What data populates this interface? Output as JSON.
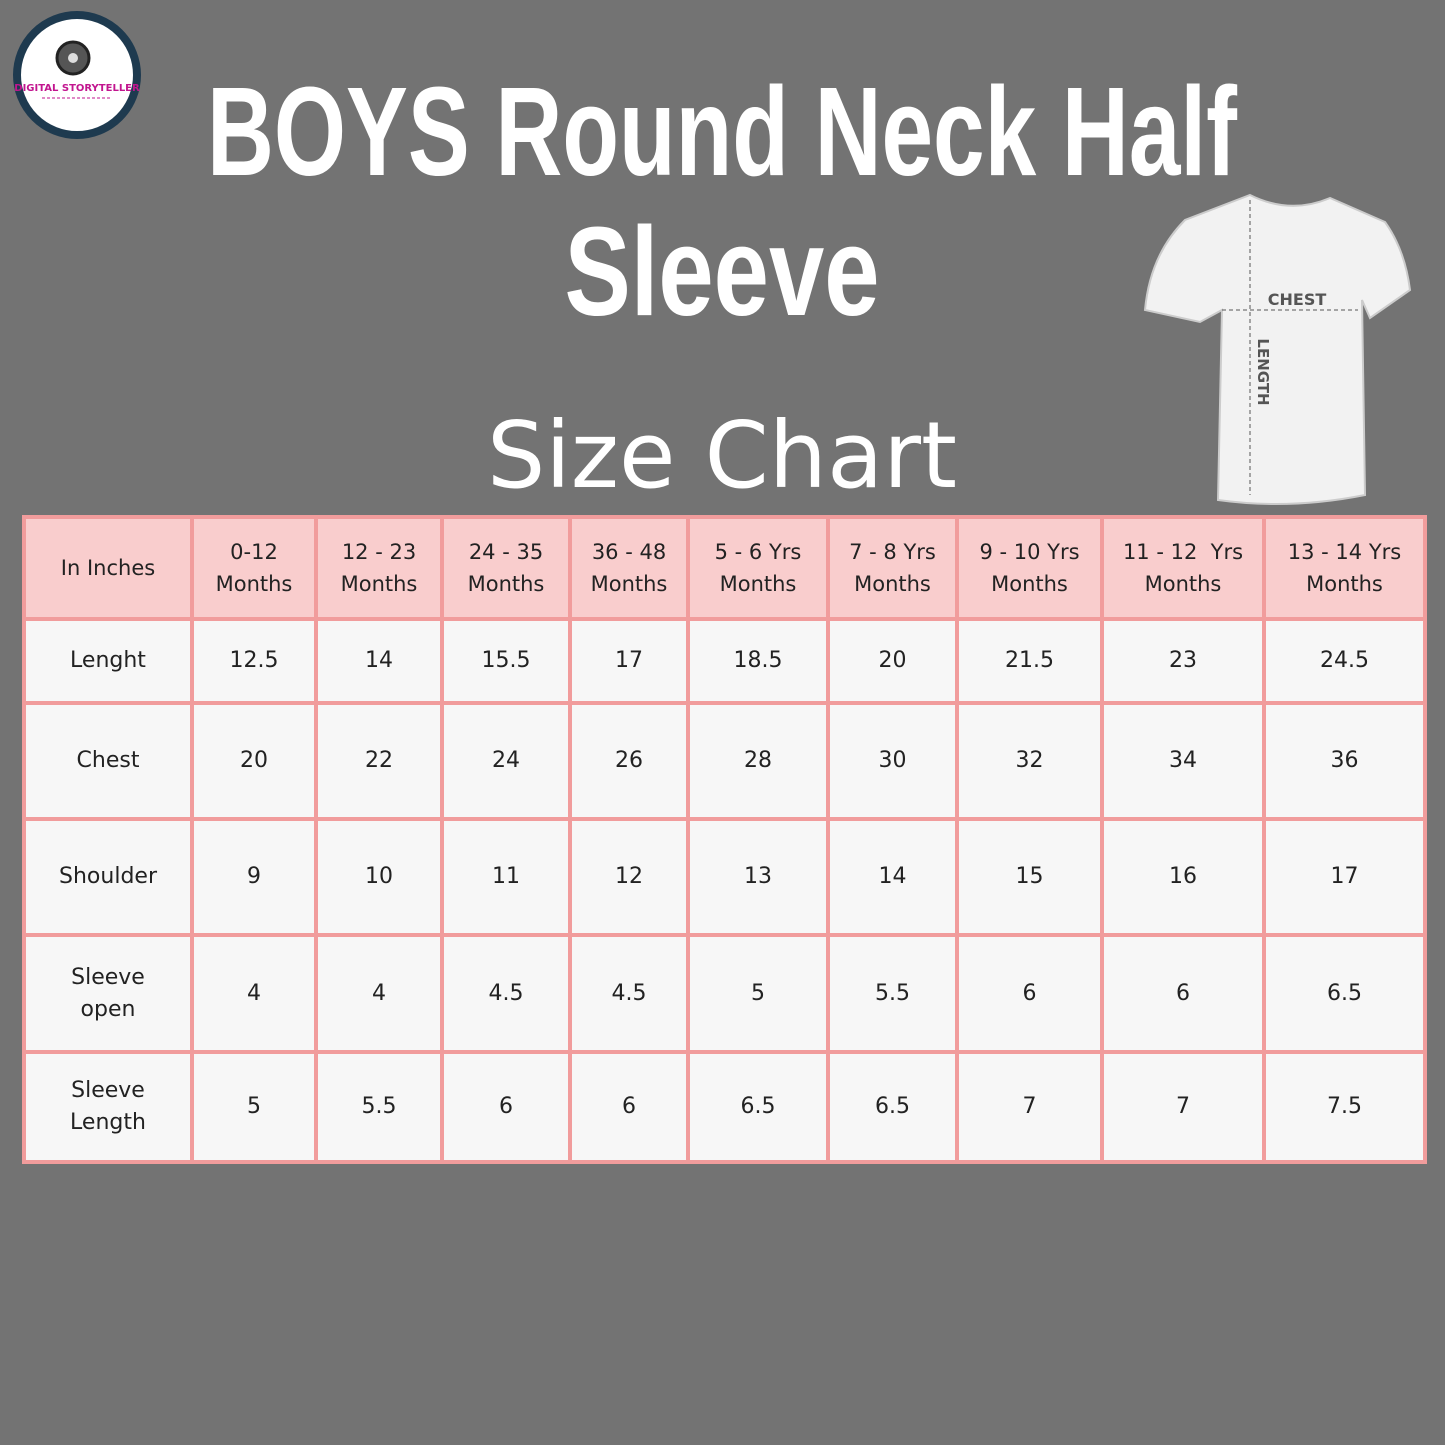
{
  "logo": {
    "text": "DIGITAL STORYTELLER"
  },
  "header": {
    "title_lines": [
      "BOYS Round Neck Half",
      "Sleeve"
    ],
    "subtitle": "Size Chart"
  },
  "illustration": {
    "labels": [
      "CHEST",
      "LENGTH"
    ]
  },
  "table": {
    "header": [
      [
        "In Inches"
      ],
      [
        "0-12",
        "Months"
      ],
      [
        "12 - 23",
        "Months"
      ],
      [
        "24 - 35",
        "Months"
      ],
      [
        "36 - 48",
        "Months"
      ],
      [
        "5 - 6 Yrs",
        "Months"
      ],
      [
        "7 - 8 Yrs",
        "Months"
      ],
      [
        "9 - 10 Yrs",
        "Months"
      ],
      [
        "11 - 12  Yrs",
        "Months"
      ],
      [
        "13 - 14 Yrs",
        "Months"
      ]
    ],
    "rows": [
      {
        "label": [
          "Lenght"
        ],
        "values": [
          12.5,
          14,
          15.5,
          17,
          18.5,
          20,
          21.5,
          23,
          24.5
        ]
      },
      {
        "label": [
          "Chest"
        ],
        "values": [
          20,
          22,
          24,
          26,
          28,
          30,
          32,
          34,
          36
        ]
      },
      {
        "label": [
          "Shoulder"
        ],
        "values": [
          9,
          10,
          11,
          12,
          13,
          14,
          15,
          16,
          17
        ]
      },
      {
        "label": [
          "Sleeve",
          "open"
        ],
        "values": [
          4,
          4,
          4.5,
          4.5,
          5,
          5.5,
          6,
          6,
          6.5
        ]
      },
      {
        "label": [
          "Sleeve",
          "Length"
        ],
        "values": [
          5,
          5.5,
          6,
          6,
          6.5,
          6.5,
          7,
          7,
          7.5
        ]
      }
    ]
  }
}
